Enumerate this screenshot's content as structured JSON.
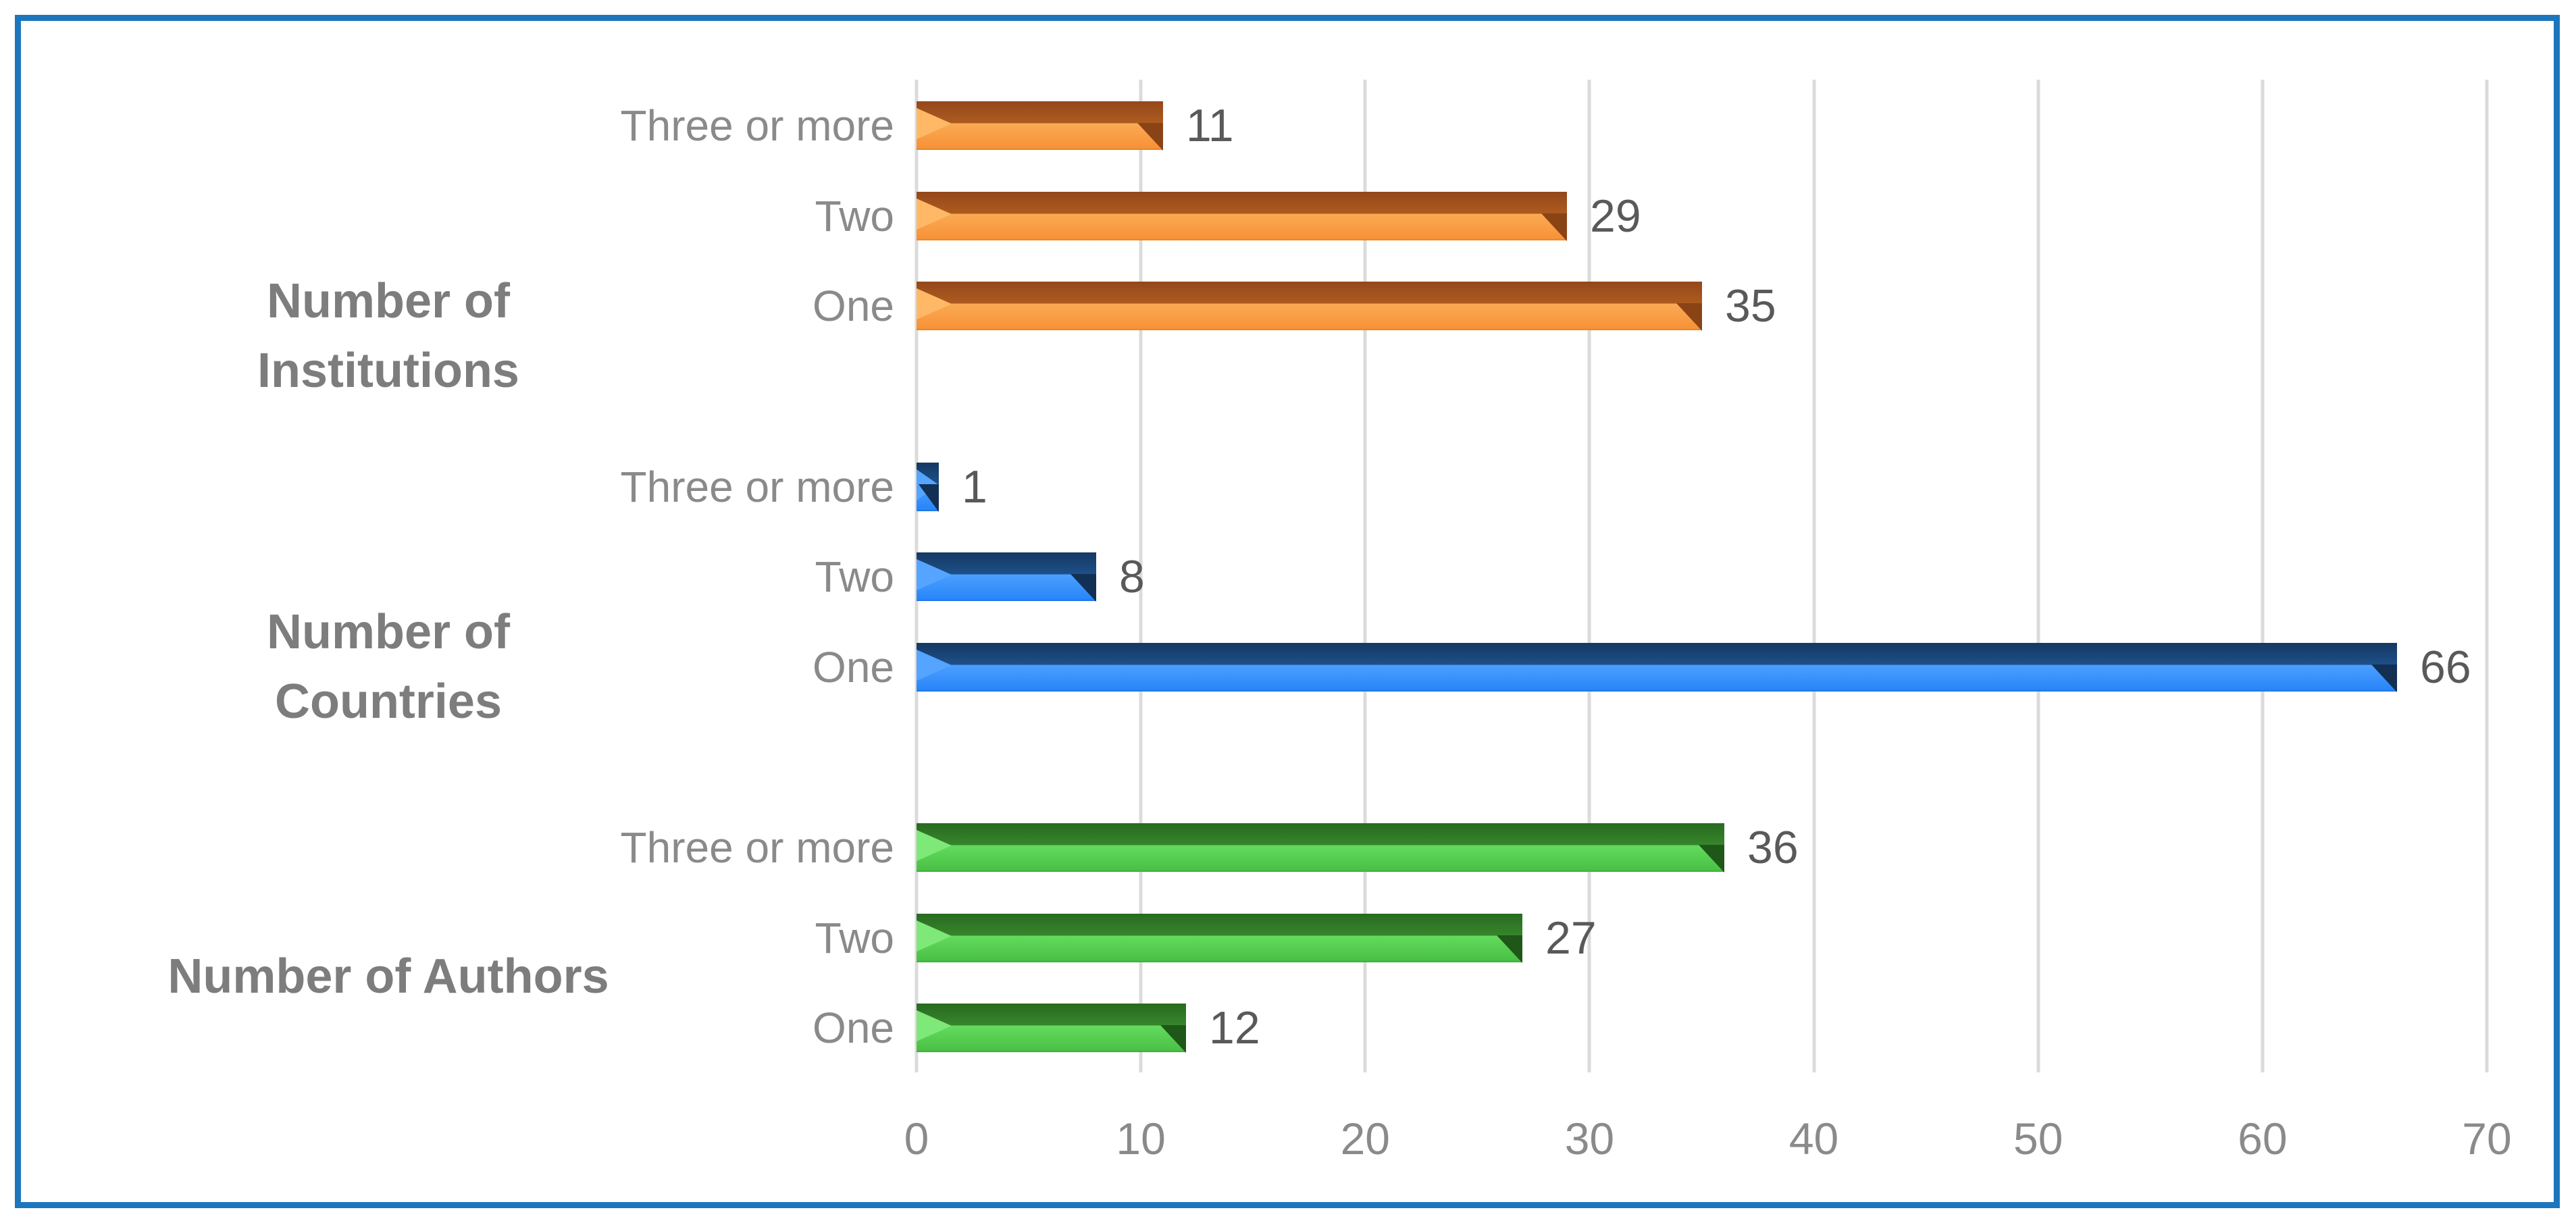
{
  "chart_data": {
    "type": "bar",
    "orientation": "horizontal",
    "title": "",
    "xlabel": "",
    "ylabel": "",
    "xlim": [
      0,
      70
    ],
    "xticks": [
      "0",
      "10",
      "20",
      "30",
      "40",
      "50",
      "60",
      "70"
    ],
    "grid": true,
    "legend": false,
    "value_labels": true,
    "groups": [
      {
        "label": "Number of Institutions",
        "label_lines": [
          "Number of",
          "Institutions"
        ],
        "series": "orange",
        "bars": [
          {
            "category": "Three or more",
            "value": 11
          },
          {
            "category": "Two",
            "value": 29
          },
          {
            "category": "One",
            "value": 35
          }
        ]
      },
      {
        "label": "Number of Countries",
        "label_lines": [
          "Number of",
          "Countries"
        ],
        "series": "blue",
        "bars": [
          {
            "category": "Three or more",
            "value": 1
          },
          {
            "category": "Two",
            "value": 8
          },
          {
            "category": "One",
            "value": 66
          }
        ]
      },
      {
        "label": "Number of Authors",
        "label_lines": [
          "Number of Authors"
        ],
        "series": "green",
        "bars": [
          {
            "category": "Three or more",
            "value": 36
          },
          {
            "category": "Two",
            "value": 27
          },
          {
            "category": "One",
            "value": 12
          }
        ]
      }
    ]
  },
  "colors": {
    "background": "#FFFFFF",
    "border": "#1C76BD",
    "gridline": "#DBDBDB",
    "category_label": "#8A8A8A",
    "axis_label": "#8A8A8A",
    "value_label": "#595959",
    "group_label": "#7D7D7D",
    "series": {
      "orange": {
        "dark_top": "#94471B",
        "dark_bottom": "#AD5B1F",
        "light_top": "#FBAA54",
        "light_bottom": "#F79238",
        "light_edge": "#E2821F",
        "bevel": "#FFB966",
        "cap": "#8A4315"
      },
      "blue": {
        "dark_top": "#143862",
        "dark_bottom": "#1E5089",
        "light_top": "#4C9FFF",
        "light_bottom": "#2986F8",
        "light_edge": "#1E6FE0",
        "bevel": "#55A4FF",
        "cap": "#122F54"
      },
      "green": {
        "dark_top": "#286A20",
        "dark_bottom": "#37852C",
        "light_top": "#63DB5D",
        "light_bottom": "#4AC146",
        "light_edge": "#3AA83A",
        "bevel": "#7EE878",
        "cap": "#1F5718"
      }
    }
  }
}
